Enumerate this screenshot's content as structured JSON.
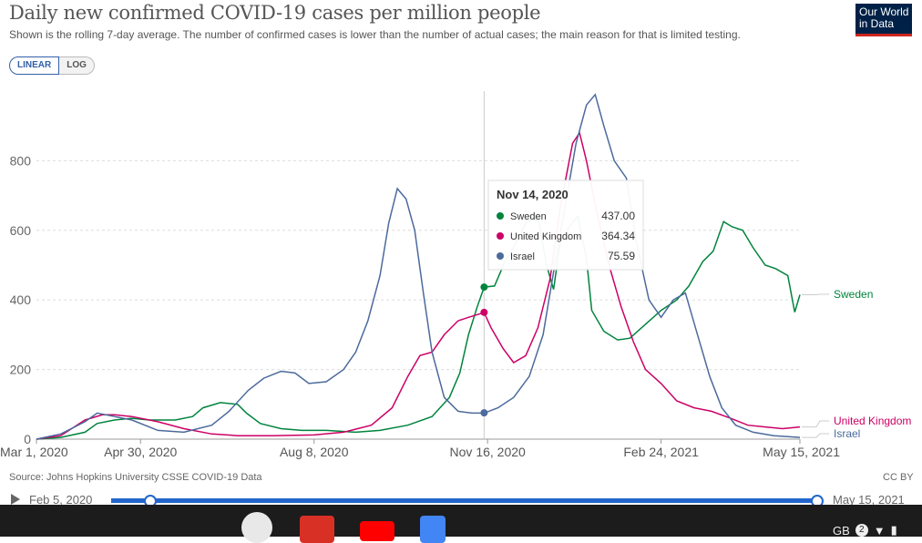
{
  "header": {
    "title": "Daily new confirmed COVID-19 cases per million people",
    "subtitle": "Shown is the rolling 7-day average. The number of confirmed cases is lower than the number of actual cases; the main reason for that is limited testing.",
    "logo_line1": "Our World",
    "logo_line2": "in Data"
  },
  "controls": {
    "linear_label": "LINEAR",
    "log_label": "LOG",
    "active": "LINEAR"
  },
  "footer": {
    "source": "Source: Johns Hopkins University CSSE COVID-19 Data",
    "license": "CC BY"
  },
  "timeline": {
    "start_label": "Feb 5, 2020",
    "end_label": "May 15, 2021"
  },
  "colors": {
    "Sweden": "#00843d",
    "United Kingdom": "#cc0066",
    "Israel": "#4c6a9c",
    "grid": "#dddddd"
  },
  "chart_data": {
    "type": "line",
    "title": "Daily new confirmed COVID-19 cases per million people",
    "xlabel": "",
    "ylabel": "",
    "x_range": [
      "2020-03-01",
      "2021-05-15"
    ],
    "ylim": [
      0,
      1000
    ],
    "y_ticks": [
      0,
      200,
      400,
      600,
      800
    ],
    "x_ticks": [
      {
        "date": "2020-03-01",
        "label": "Mar 1, 2020"
      },
      {
        "date": "2020-04-30",
        "label": "Apr 30, 2020"
      },
      {
        "date": "2020-08-08",
        "label": "Aug 8, 2020"
      },
      {
        "date": "2020-11-16",
        "label": "Nov 16, 2020"
      },
      {
        "date": "2021-02-24",
        "label": "Feb 24, 2021"
      },
      {
        "date": "2021-05-15",
        "label": "May 15, 2021"
      }
    ],
    "grid": "horizontal dashed",
    "legend": "right end labels",
    "tooltip": {
      "date": "Nov 14, 2020",
      "x": "2020-11-14",
      "entries": [
        {
          "name": "Sweden",
          "value": "437.00"
        },
        {
          "name": "United Kingdom",
          "value": "364.34"
        },
        {
          "name": "Israel",
          "value": "75.59"
        }
      ]
    },
    "series": [
      {
        "name": "Sweden",
        "end_label": "Sweden",
        "points": [
          [
            "2020-03-01",
            0
          ],
          [
            "2020-03-15",
            5
          ],
          [
            "2020-03-29",
            20
          ],
          [
            "2020-04-05",
            45
          ],
          [
            "2020-04-15",
            55
          ],
          [
            "2020-04-25",
            60
          ],
          [
            "2020-05-05",
            55
          ],
          [
            "2020-05-20",
            55
          ],
          [
            "2020-05-30",
            65
          ],
          [
            "2020-06-05",
            90
          ],
          [
            "2020-06-15",
            105
          ],
          [
            "2020-06-25",
            100
          ],
          [
            "2020-06-30",
            75
          ],
          [
            "2020-07-08",
            45
          ],
          [
            "2020-07-20",
            30
          ],
          [
            "2020-08-01",
            25
          ],
          [
            "2020-08-15",
            25
          ],
          [
            "2020-09-01",
            20
          ],
          [
            "2020-09-15",
            25
          ],
          [
            "2020-10-01",
            40
          ],
          [
            "2020-10-15",
            65
          ],
          [
            "2020-10-25",
            120
          ],
          [
            "2020-10-31",
            190
          ],
          [
            "2020-11-05",
            300
          ],
          [
            "2020-11-10",
            380
          ],
          [
            "2020-11-14",
            437
          ],
          [
            "2020-11-20",
            440
          ],
          [
            "2020-11-26",
            510
          ],
          [
            "2020-12-02",
            560
          ],
          [
            "2020-12-08",
            620
          ],
          [
            "2020-12-15",
            640
          ],
          [
            "2020-12-20",
            500
          ],
          [
            "2020-12-24",
            430
          ],
          [
            "2020-12-28",
            570
          ],
          [
            "2021-01-02",
            610
          ],
          [
            "2021-01-07",
            640
          ],
          [
            "2021-01-12",
            520
          ],
          [
            "2021-01-15",
            370
          ],
          [
            "2021-01-22",
            310
          ],
          [
            "2021-01-30",
            285
          ],
          [
            "2021-02-06",
            290
          ],
          [
            "2021-02-15",
            330
          ],
          [
            "2021-02-24",
            370
          ],
          [
            "2021-03-05",
            400
          ],
          [
            "2021-03-12",
            440
          ],
          [
            "2021-03-20",
            510
          ],
          [
            "2021-03-26",
            540
          ],
          [
            "2021-04-01",
            625
          ],
          [
            "2021-04-06",
            610
          ],
          [
            "2021-04-12",
            600
          ],
          [
            "2021-04-18",
            550
          ],
          [
            "2021-04-25",
            500
          ],
          [
            "2021-05-01",
            490
          ],
          [
            "2021-05-08",
            470
          ],
          [
            "2021-05-12",
            365
          ],
          [
            "2021-05-15",
            415
          ]
        ]
      },
      {
        "name": "United Kingdom",
        "end_label": "United Kingdom",
        "points": [
          [
            "2020-03-01",
            0
          ],
          [
            "2020-03-15",
            10
          ],
          [
            "2020-03-29",
            55
          ],
          [
            "2020-04-08",
            70
          ],
          [
            "2020-04-15",
            70
          ],
          [
            "2020-04-25",
            65
          ],
          [
            "2020-05-10",
            50
          ],
          [
            "2020-05-25",
            30
          ],
          [
            "2020-06-10",
            15
          ],
          [
            "2020-06-25",
            10
          ],
          [
            "2020-07-15",
            10
          ],
          [
            "2020-08-08",
            12
          ],
          [
            "2020-08-25",
            20
          ],
          [
            "2020-09-10",
            40
          ],
          [
            "2020-09-22",
            90
          ],
          [
            "2020-10-01",
            180
          ],
          [
            "2020-10-08",
            240
          ],
          [
            "2020-10-15",
            250
          ],
          [
            "2020-10-22",
            300
          ],
          [
            "2020-10-30",
            340
          ],
          [
            "2020-11-05",
            350
          ],
          [
            "2020-11-14",
            364
          ],
          [
            "2020-11-18",
            320
          ],
          [
            "2020-11-25",
            260
          ],
          [
            "2020-12-01",
            220
          ],
          [
            "2020-12-08",
            240
          ],
          [
            "2020-12-15",
            320
          ],
          [
            "2020-12-22",
            460
          ],
          [
            "2020-12-28",
            670
          ],
          [
            "2021-01-04",
            850
          ],
          [
            "2021-01-08",
            880
          ],
          [
            "2021-01-12",
            800
          ],
          [
            "2021-01-18",
            650
          ],
          [
            "2021-01-25",
            500
          ],
          [
            "2021-02-01",
            380
          ],
          [
            "2021-02-08",
            280
          ],
          [
            "2021-02-15",
            200
          ],
          [
            "2021-02-24",
            160
          ],
          [
            "2021-03-05",
            110
          ],
          [
            "2021-03-15",
            90
          ],
          [
            "2021-03-25",
            80
          ],
          [
            "2021-04-05",
            60
          ],
          [
            "2021-04-15",
            40
          ],
          [
            "2021-04-25",
            35
          ],
          [
            "2021-05-05",
            30
          ],
          [
            "2021-05-15",
            35
          ]
        ]
      },
      {
        "name": "Israel",
        "end_label": "Israel",
        "points": [
          [
            "2020-03-01",
            0
          ],
          [
            "2020-03-15",
            15
          ],
          [
            "2020-03-29",
            50
          ],
          [
            "2020-04-05",
            75
          ],
          [
            "2020-04-15",
            65
          ],
          [
            "2020-04-25",
            55
          ],
          [
            "2020-05-10",
            25
          ],
          [
            "2020-05-25",
            20
          ],
          [
            "2020-06-10",
            40
          ],
          [
            "2020-06-20",
            80
          ],
          [
            "2020-07-01",
            140
          ],
          [
            "2020-07-10",
            175
          ],
          [
            "2020-07-20",
            195
          ],
          [
            "2020-07-28",
            190
          ],
          [
            "2020-08-05",
            160
          ],
          [
            "2020-08-15",
            165
          ],
          [
            "2020-08-25",
            200
          ],
          [
            "2020-09-01",
            250
          ],
          [
            "2020-09-08",
            340
          ],
          [
            "2020-09-15",
            470
          ],
          [
            "2020-09-20",
            620
          ],
          [
            "2020-09-25",
            720
          ],
          [
            "2020-09-30",
            690
          ],
          [
            "2020-10-05",
            600
          ],
          [
            "2020-10-10",
            420
          ],
          [
            "2020-10-15",
            250
          ],
          [
            "2020-10-22",
            120
          ],
          [
            "2020-10-30",
            80
          ],
          [
            "2020-11-07",
            75
          ],
          [
            "2020-11-14",
            75
          ],
          [
            "2020-11-22",
            90
          ],
          [
            "2020-12-01",
            120
          ],
          [
            "2020-12-10",
            180
          ],
          [
            "2020-12-18",
            300
          ],
          [
            "2020-12-24",
            480
          ],
          [
            "2020-12-30",
            650
          ],
          [
            "2021-01-06",
            850
          ],
          [
            "2021-01-12",
            960
          ],
          [
            "2021-01-17",
            990
          ],
          [
            "2021-01-22",
            900
          ],
          [
            "2021-01-28",
            800
          ],
          [
            "2021-02-04",
            750
          ],
          [
            "2021-02-10",
            560
          ],
          [
            "2021-02-17",
            400
          ],
          [
            "2021-02-24",
            350
          ],
          [
            "2021-03-03",
            400
          ],
          [
            "2021-03-10",
            420
          ],
          [
            "2021-03-17",
            300
          ],
          [
            "2021-03-24",
            180
          ],
          [
            "2021-03-31",
            90
          ],
          [
            "2021-04-08",
            40
          ],
          [
            "2021-04-18",
            20
          ],
          [
            "2021-04-30",
            10
          ],
          [
            "2021-05-15",
            5
          ]
        ]
      }
    ]
  }
}
